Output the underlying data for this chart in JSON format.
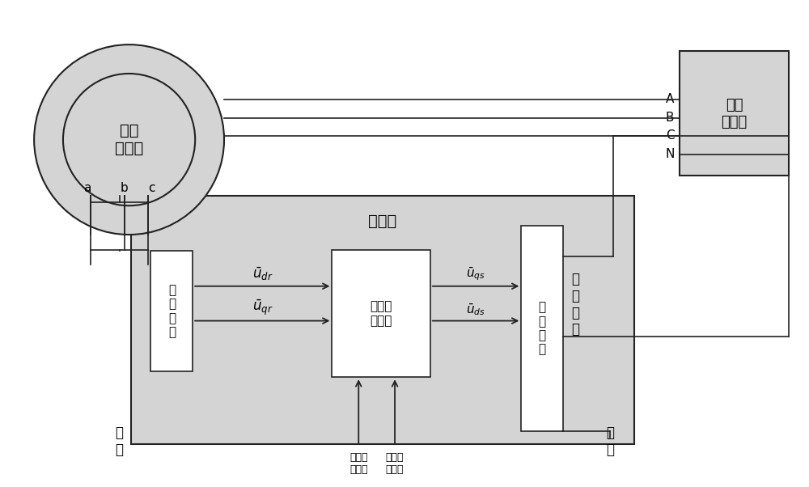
{
  "bg_color": "#ffffff",
  "light_gray": "#d4d4d4",
  "dk": "#222222",
  "gen_label": "双馈\n发电机",
  "transformer_label": "升压\n变压器",
  "converter_label": "变流器",
  "coord_left_label": "坐\n标\n变\n换",
  "coord_right_label": "坐\n标\n变\n换",
  "dc_label": "直流电\n量计算",
  "machine_label": "机\n端",
  "grid_label": "网\n端",
  "phases": [
    "A",
    "B",
    "C",
    "N"
  ],
  "u_dr": "$\\bar{u}_{dr}$",
  "u_qr": "$\\bar{u}_{qr}$",
  "u_qs": "$\\bar{u}_{qs}$",
  "u_ds": "$\\bar{u}_{ds}$",
  "active": "有功功\n率指令",
  "reactive": "无功功\n率指令"
}
